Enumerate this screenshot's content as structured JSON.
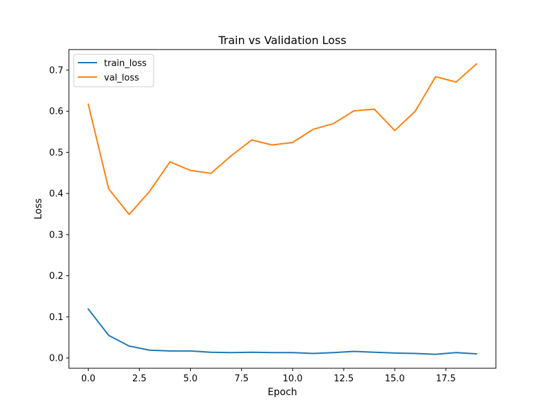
{
  "chart_data": {
    "type": "line",
    "title": "Train vs Validation Loss",
    "xlabel": "Epoch",
    "ylabel": "Loss",
    "x": [
      0,
      1,
      2,
      3,
      4,
      5,
      6,
      7,
      8,
      9,
      10,
      11,
      12,
      13,
      14,
      15,
      16,
      17,
      18,
      19
    ],
    "xlim": [
      -0.95,
      19.95
    ],
    "ylim": [
      -0.025,
      0.75
    ],
    "xticks": [
      0.0,
      2.5,
      5.0,
      7.5,
      10.0,
      12.5,
      15.0,
      17.5
    ],
    "xtick_labels": [
      "0.0",
      "2.5",
      "5.0",
      "7.5",
      "10.0",
      "12.5",
      "15.0",
      "17.5"
    ],
    "yticks": [
      0.0,
      0.1,
      0.2,
      0.3,
      0.4,
      0.5,
      0.6,
      0.7
    ],
    "ytick_labels": [
      "0.0",
      "0.1",
      "0.2",
      "0.3",
      "0.4",
      "0.5",
      "0.6",
      "0.7"
    ],
    "grid": false,
    "legend_position": "top-left",
    "series": [
      {
        "name": "train_loss",
        "color": "#1f77b4",
        "values": [
          0.119,
          0.055,
          0.029,
          0.019,
          0.017,
          0.017,
          0.014,
          0.013,
          0.014,
          0.013,
          0.013,
          0.011,
          0.013,
          0.016,
          0.014,
          0.012,
          0.011,
          0.009,
          0.013,
          0.01
        ]
      },
      {
        "name": "val_loss",
        "color": "#ff7f0e",
        "values": [
          0.617,
          0.411,
          0.349,
          0.405,
          0.477,
          0.456,
          0.449,
          0.492,
          0.53,
          0.518,
          0.524,
          0.556,
          0.57,
          0.601,
          0.605,
          0.553,
          0.6,
          0.684,
          0.671,
          0.715
        ]
      }
    ]
  }
}
